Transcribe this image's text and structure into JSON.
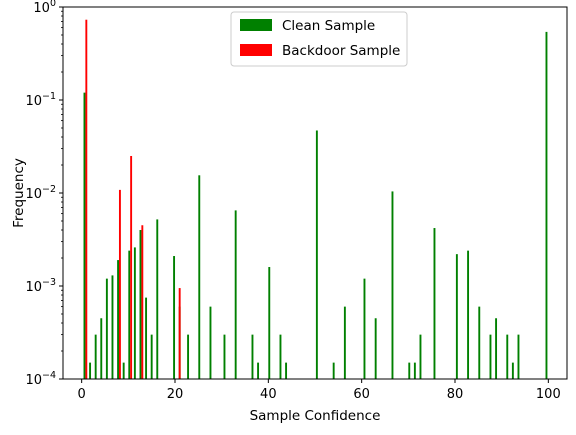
{
  "chart_data": {
    "type": "bar",
    "xlabel": "Sample Confidence",
    "ylabel": "Frequency",
    "xlim": [
      -4,
      104
    ],
    "ylim": [
      0.0001,
      1
    ],
    "yscale": "log",
    "xticks": [
      0,
      20,
      40,
      60,
      80,
      100
    ],
    "yticks": [
      {
        "value": 0.0001,
        "base": "10",
        "exp": "−4"
      },
      {
        "value": 0.001,
        "base": "10",
        "exp": "−3"
      },
      {
        "value": 0.01,
        "base": "10",
        "exp": "−2"
      },
      {
        "value": 0.1,
        "base": "10",
        "exp": "−1"
      },
      {
        "value": 1,
        "base": "10",
        "exp": "0"
      }
    ],
    "grid": false,
    "legend_position": "top-center",
    "series": [
      {
        "name": "Clean Sample",
        "color": "#008000",
        "x": [
          0.6,
          1.8,
          3.0,
          4.2,
          5.4,
          6.6,
          7.8,
          9.0,
          10.2,
          11.4,
          12.6,
          13.8,
          15.0,
          16.2,
          19.8,
          21.0,
          22.8,
          25.2,
          27.6,
          30.6,
          33.0,
          36.6,
          37.8,
          40.2,
          42.6,
          43.8,
          50.4,
          54.0,
          56.4,
          60.6,
          63.0,
          66.6,
          70.2,
          71.4,
          72.6,
          75.6,
          80.4,
          82.8,
          85.2,
          87.6,
          88.8,
          91.2,
          92.4,
          93.6,
          99.6
        ],
        "values": [
          0.12,
          0.00015,
          0.0003,
          0.00045,
          0.0012,
          0.0013,
          0.0019,
          0.00015,
          0.0024,
          0.0026,
          0.004,
          0.00075,
          0.0003,
          0.0052,
          0.0021,
          0.0006,
          0.0003,
          0.0155,
          0.0006,
          0.0003,
          0.0065,
          0.0003,
          0.00015,
          0.0016,
          0.0003,
          0.00015,
          0.047,
          0.00015,
          0.0006,
          0.0012,
          0.00045,
          0.0104,
          0.00015,
          0.00015,
          0.0003,
          0.0042,
          0.0022,
          0.0024,
          0.0006,
          0.0003,
          0.00045,
          0.0003,
          0.00015,
          0.0003,
          0.54
        ]
      },
      {
        "name": "Backdoor Sample",
        "color": "#ff0000",
        "x": [
          1.0,
          8.2,
          10.6,
          13.0,
          21.0
        ],
        "values": [
          0.73,
          0.0108,
          0.025,
          0.0045,
          0.00095
        ]
      }
    ]
  }
}
